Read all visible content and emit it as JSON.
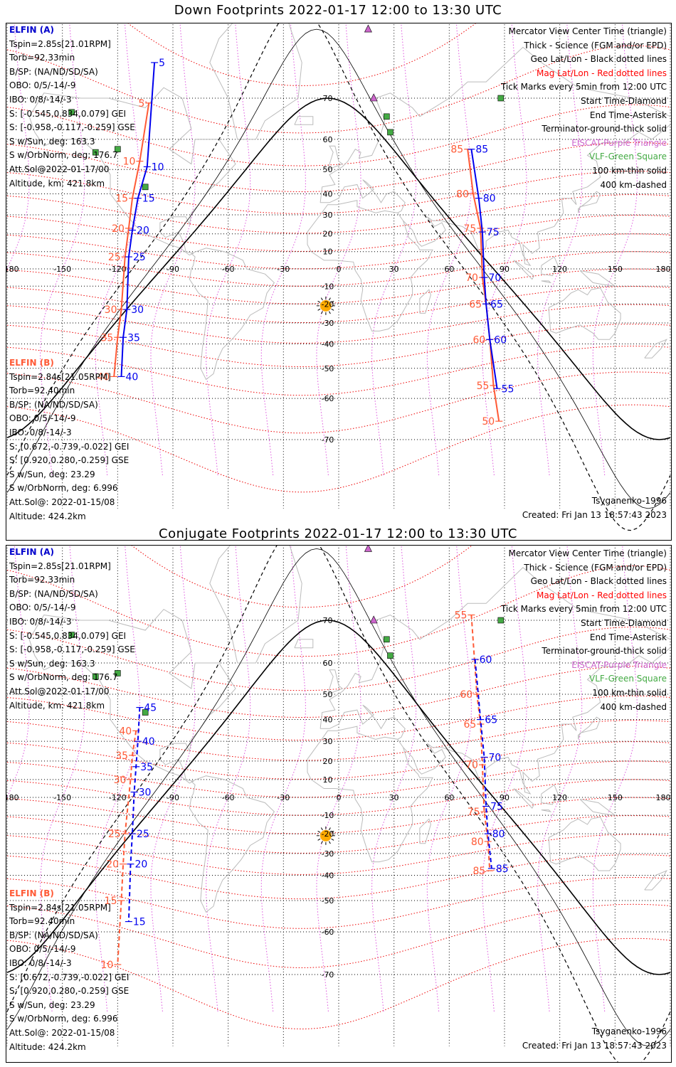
{
  "panels": [
    {
      "title": "Down Footprints 2022-01-17 12:00 to 13:30 UTC",
      "elfin_a": {
        "header": "ELFIN (A)",
        "lines": [
          "Tspin=2.85s[21.01RPM]",
          "Torb=92.33min",
          "B/SP: (NA/ND/SD/SA)",
          "OBO: 0/5/-14/-9",
          "IBO: 0/8/-14/-3",
          "S: [-0.545,0.834,0.079] GEI",
          "S: [-0.958,-0.117,-0.259] GSE",
          "S w/Sun, deg: 163.3",
          "S w/OrbNorm, deg: 176.7",
          "Att.Sol@2022-01-17/00",
          "Altitude, km: 421.8km"
        ]
      },
      "elfin_b": {
        "header": "ELFIN (B)",
        "lines": [
          "Tspin=2.84s[21.05RPM]",
          "Torb=92.40min",
          "B/SP: (NA/ND/SD/SA)",
          "OBO: 0/5/-14/-9",
          "IBO: 0/8/-14/-3",
          "S: [0.672,-0.739,-0.022] GEI",
          "S: [0.920,0.280,-0.259] GSE",
          "S w/Sun, deg: 23.29",
          "S w/OrbNorm, deg: 6.996",
          "Att.Sol@: 2022-01-15/08",
          "Altitude: 424.2km"
        ]
      },
      "legend": [
        {
          "text": "Mercator View Center Time (triangle)",
          "color": "#000000"
        },
        {
          "text": "Thick - Science (FGM and/or EPD)",
          "color": "#000000"
        },
        {
          "text": "Geo Lat/Lon - Black dotted lines",
          "color": "#000000"
        },
        {
          "text": "Mag Lat/Lon - Red dotted lines",
          "color": "#ff0000"
        },
        {
          "text": "Tick Marks every 5min from 12:00 UTC",
          "color": "#000000"
        },
        {
          "text": "Start Time-Diamond",
          "color": "#000000"
        },
        {
          "text": "End Time-Asterisk",
          "color": "#000000"
        },
        {
          "text": "Terminator-ground-thick solid",
          "color": "#000000"
        },
        {
          "text": "EISCAT-Purple Triangle",
          "color": "#cc66cc"
        },
        {
          "text": "VLF-Green Square",
          "color": "#44aa44"
        },
        {
          "text": "100 km-thin solid",
          "color": "#000000"
        },
        {
          "text": "400 km-dashed",
          "color": "#000000"
        }
      ],
      "model": "Tsyganenko-1996",
      "created": "Created: Fri Jan 13 18:57:43 2023",
      "a_ticks": [
        {
          "lon": -100,
          "lat": 76,
          "label": "5"
        },
        {
          "lon": -104,
          "lat": 51,
          "label": "10"
        },
        {
          "lon": -109,
          "lat": 38,
          "label": "15"
        },
        {
          "lon": -112,
          "lat": 22,
          "label": "20"
        },
        {
          "lon": -114,
          "lat": 7,
          "label": "25"
        },
        {
          "lon": -115,
          "lat": -23,
          "label": "30"
        },
        {
          "lon": -117,
          "lat": -37,
          "label": "35"
        },
        {
          "lon": -118,
          "lat": -53,
          "label": "40"
        },
        {
          "lon": 72,
          "lat": 57,
          "label": "85"
        },
        {
          "lon": 76,
          "lat": 38,
          "label": "80"
        },
        {
          "lon": 78,
          "lat": 21,
          "label": "75"
        },
        {
          "lon": 79,
          "lat": -5,
          "label": "70"
        },
        {
          "lon": 80,
          "lat": -20,
          "label": "65"
        },
        {
          "lon": 82,
          "lat": -38,
          "label": "60"
        },
        {
          "lon": 86,
          "lat": -57,
          "label": "55"
        }
      ],
      "b_ticks": [
        {
          "lon": -103,
          "lat": 69,
          "label": "5"
        },
        {
          "lon": -108,
          "lat": 53,
          "label": "10"
        },
        {
          "lon": -112,
          "lat": 38,
          "label": "15"
        },
        {
          "lon": -114,
          "lat": 23,
          "label": "20"
        },
        {
          "lon": -116,
          "lat": 7,
          "label": "25"
        },
        {
          "lon": -118,
          "lat": -23,
          "label": "30"
        },
        {
          "lon": -120,
          "lat": -37,
          "label": "35"
        },
        {
          "lon": -122,
          "lat": -53,
          "label": "40"
        },
        {
          "lon": 70,
          "lat": 57,
          "label": "85"
        },
        {
          "lon": 73,
          "lat": 40,
          "label": "80"
        },
        {
          "lon": 77,
          "lat": 23,
          "label": "75"
        },
        {
          "lon": 78,
          "lat": -5,
          "label": "70"
        },
        {
          "lon": 80,
          "lat": -20,
          "label": "65"
        },
        {
          "lon": 82,
          "lat": -38,
          "label": "60"
        },
        {
          "lon": 84,
          "lat": -56,
          "label": "55"
        },
        {
          "lon": 87,
          "lat": -66,
          "label": "50"
        }
      ]
    },
    {
      "title": "Conjugate Footprints 2022-01-17 12:00 to 13:30 UTC",
      "elfin_a": {
        "header": "ELFIN (A)",
        "lines": [
          "Tspin=2.85s[21.01RPM]",
          "Torb=92.33min",
          "B/SP: (NA/ND/SD/SA)",
          "OBO: 0/5/-14/-9",
          "IBO: 0/8/-14/-3",
          "S: [-0.545,0.834,0.079] GEI",
          "S: [-0.958,-0.117,-0.259] GSE",
          "S w/Sun, deg: 163.3",
          "S w/OrbNorm, deg: 176.7",
          "Att.Sol@2022-01-17/00",
          "Altitude, km: 421.8km"
        ]
      },
      "elfin_b": {
        "header": "ELFIN (B)",
        "lines": [
          "Tspin=2.84s[21.05RPM]",
          "Torb=92.40min",
          "B/SP: (NA/ND/SD/SA)",
          "OBO: 0/5/-14/-9",
          "IBO: 0/8/-14/-3",
          "S: [0.672,-0.739,-0.022] GEI",
          "S: [0.920,0.280,-0.259] GSE",
          "S w/Sun, deg: 23.29",
          "S w/OrbNorm, deg: 6.996",
          "Att.Sol@: 2022-01-15/08",
          "Altitude: 424.2km"
        ]
      },
      "legend": [
        {
          "text": "Mercator View Center Time (triangle)",
          "color": "#000000"
        },
        {
          "text": "Thick - Science (FGM and/or EPD)",
          "color": "#000000"
        },
        {
          "text": "Geo Lat/Lon - Black dotted lines",
          "color": "#000000"
        },
        {
          "text": "Mag Lat/Lon - Red dotted lines",
          "color": "#ff0000"
        },
        {
          "text": "Tick Marks every 5min from 12:00 UTC",
          "color": "#000000"
        },
        {
          "text": "Start Time-Diamond",
          "color": "#000000"
        },
        {
          "text": "End Time-Asterisk",
          "color": "#000000"
        },
        {
          "text": "Terminator-ground-thick solid",
          "color": "#000000"
        },
        {
          "text": "EISCAT-Purple Triangle",
          "color": "#cc66cc"
        },
        {
          "text": "VLF-Green Square",
          "color": "#44aa44"
        },
        {
          "text": "100 km-thin solid",
          "color": "#000000"
        },
        {
          "text": "400 km-dashed",
          "color": "#000000"
        }
      ],
      "model": "Tsyganenko-1996",
      "created": "Created: Fri Jan 13 18:57:43 2023",
      "a_ticks": [
        {
          "lon": -108,
          "lat": 45,
          "label": "45"
        },
        {
          "lon": -109,
          "lat": 30,
          "label": "40"
        },
        {
          "lon": -110,
          "lat": 17,
          "label": "35"
        },
        {
          "lon": -111,
          "lat": 3,
          "label": "30"
        },
        {
          "lon": -112,
          "lat": -20,
          "label": "25"
        },
        {
          "lon": -113,
          "lat": -35,
          "label": "20"
        },
        {
          "lon": -114,
          "lat": -57,
          "label": "15"
        },
        {
          "lon": 74,
          "lat": 61,
          "label": "60"
        },
        {
          "lon": 77,
          "lat": 40,
          "label": "65"
        },
        {
          "lon": 79,
          "lat": 22,
          "label": "70"
        },
        {
          "lon": 80,
          "lat": -5,
          "label": "75"
        },
        {
          "lon": 81,
          "lat": -20,
          "label": "80"
        },
        {
          "lon": 83,
          "lat": -37,
          "label": "85"
        }
      ],
      "b_ticks": [
        {
          "lon": -110,
          "lat": 35,
          "label": "40"
        },
        {
          "lon": -112,
          "lat": 23,
          "label": "35"
        },
        {
          "lon": -113,
          "lat": 10,
          "label": "30"
        },
        {
          "lon": -116,
          "lat": -20,
          "label": "25"
        },
        {
          "lon": -117,
          "lat": -35,
          "label": "20"
        },
        {
          "lon": -118,
          "lat": -50,
          "label": "15"
        },
        {
          "lon": -120,
          "lat": -68,
          "label": "10"
        },
        {
          "lon": 72,
          "lat": 71,
          "label": "55"
        },
        {
          "lon": 75,
          "lat": 50,
          "label": "60"
        },
        {
          "lon": 77,
          "lat": 38,
          "label": "65"
        },
        {
          "lon": 78,
          "lat": 18,
          "label": "70"
        },
        {
          "lon": 79,
          "lat": -8,
          "label": "75"
        },
        {
          "lon": 81,
          "lat": -24,
          "label": "80"
        },
        {
          "lon": 82,
          "lat": -38,
          "label": "85"
        }
      ]
    }
  ],
  "map": {
    "lon_labels": [
      "-180",
      "-150",
      "-120",
      "-90",
      "-60",
      "-30",
      "0",
      "30",
      "60",
      "90",
      "120",
      "150",
      "180"
    ],
    "lat_labels": [
      "70",
      "60",
      "50",
      "40",
      "30",
      "20",
      "10",
      "0",
      "-10",
      "-20",
      "-30",
      "-40",
      "-50",
      "-60",
      "-70"
    ],
    "colors": {
      "elfin_a": "#0000ee",
      "elfin_b": "#ff5a36",
      "mag_grid": "#ee0000",
      "mag_lon": "#dd55dd",
      "geo_grid": "#000000",
      "coast": "#bbbbbb",
      "sun": "#ffaa00",
      "eiscat": "#cc66cc",
      "vlf": "#44aa44"
    }
  }
}
